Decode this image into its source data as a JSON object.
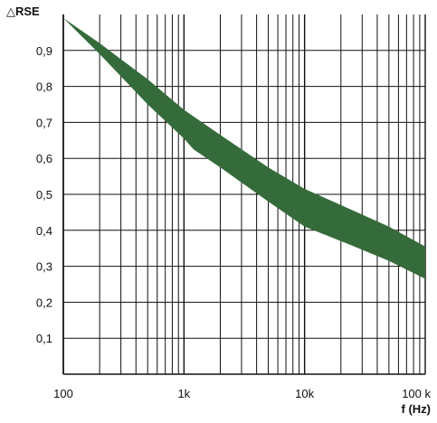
{
  "chart_data": {
    "type": "area",
    "ylabel": "△RSE",
    "xlabel": "f (Hz)",
    "xscale": "log",
    "xlim": [
      100,
      100000
    ],
    "ylim": [
      0,
      1.0
    ],
    "grid": true,
    "area_color": "#356b3a",
    "x_ticks": [
      {
        "value": 100,
        "label": "100"
      },
      {
        "value": 1000,
        "label": "1k"
      },
      {
        "value": 10000,
        "label": "10k"
      },
      {
        "value": 100000,
        "label": "100 k"
      }
    ],
    "y_ticks": [
      {
        "value": 0.1,
        "label": "0,1"
      },
      {
        "value": 0.2,
        "label": "0,2"
      },
      {
        "value": 0.3,
        "label": "0,3"
      },
      {
        "value": 0.4,
        "label": "0,4"
      },
      {
        "value": 0.5,
        "label": "0,5"
      },
      {
        "value": 0.6,
        "label": "0,6"
      },
      {
        "value": 0.7,
        "label": "0,7"
      },
      {
        "value": 0.8,
        "label": "0,8"
      },
      {
        "value": 0.9,
        "label": "0,9"
      }
    ],
    "series": [
      {
        "values_x": [
          100,
          200,
          500,
          1000,
          2000,
          5000,
          10000,
          20000,
          50000,
          100000
        ],
        "values_y": [
          0.99,
          0.92,
          0.82,
          0.735,
          0.665,
          0.575,
          0.515,
          0.47,
          0.41,
          0.355
        ]
      },
      {
        "values_x": [
          100,
          200,
          500,
          1000,
          1200,
          2000,
          5000,
          10000,
          20000,
          50000,
          100000
        ],
        "values_y": [
          0.99,
          0.89,
          0.75,
          0.655,
          0.625,
          0.575,
          0.48,
          0.41,
          0.37,
          0.315,
          0.265
        ]
      }
    ]
  }
}
